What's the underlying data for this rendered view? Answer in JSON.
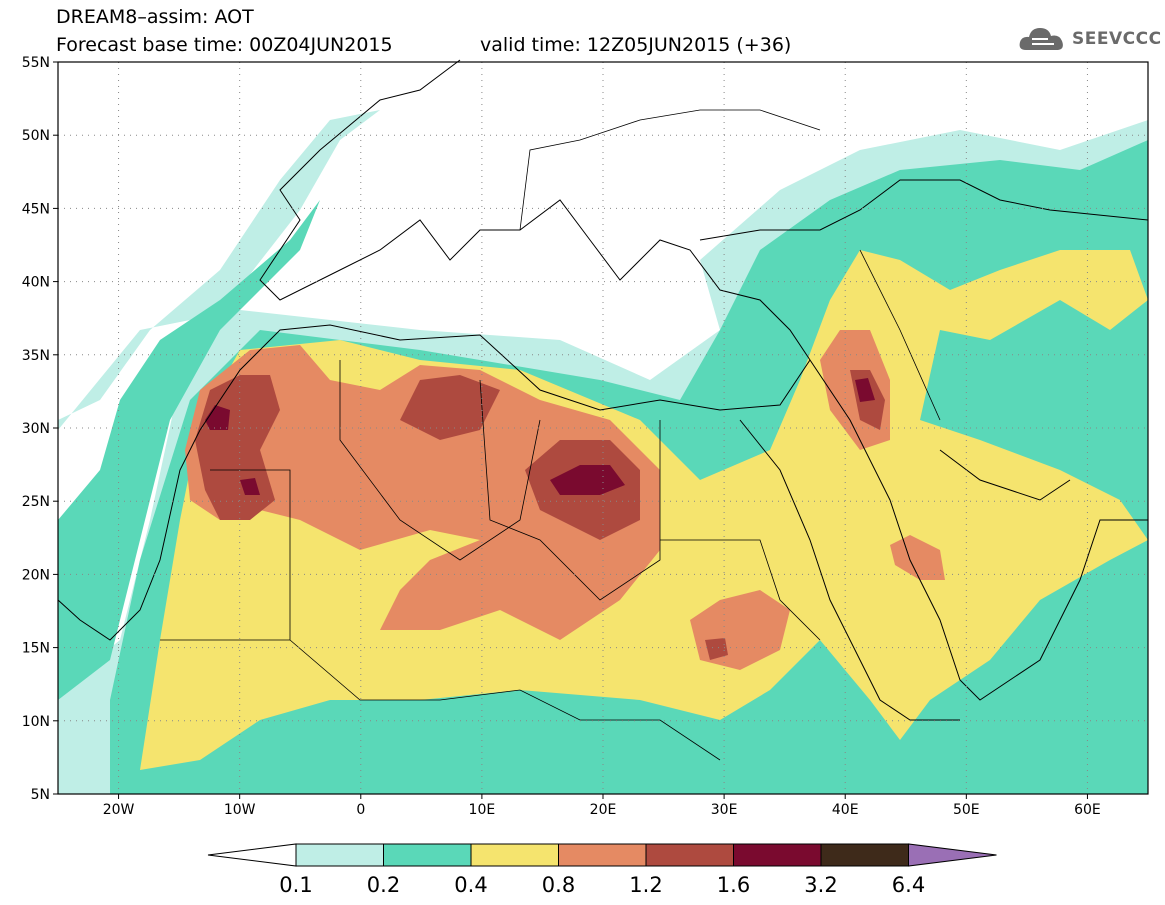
{
  "title": {
    "line1": "DREAM8–assim: AOT",
    "line2": "Forecast base time: 00Z04JUN2015",
    "valid": "valid time: 12Z05JUN2015 (+36)"
  },
  "brand": {
    "name": "SEEVCCC",
    "icon": "cloud-logo-icon"
  },
  "map": {
    "lon_range": [
      -25,
      65
    ],
    "lat_range": [
      5,
      55
    ],
    "lat_labels": [
      "55N",
      "50N",
      "45N",
      "40N",
      "35N",
      "30N",
      "25N",
      "20N",
      "15N",
      "10N",
      "5N"
    ],
    "lon_labels": [
      "20W",
      "10W",
      "0",
      "10E",
      "20E",
      "30E",
      "40E",
      "50E",
      "60E"
    ],
    "grid": "dotted"
  },
  "colorbar": {
    "labels": [
      "0.1",
      "0.2",
      "0.4",
      "0.8",
      "1.2",
      "1.6",
      "3.2",
      "6.4"
    ],
    "colors": [
      "#ffffff",
      "#bfeee6",
      "#5ad8b8",
      "#f5e46e",
      "#e58a63",
      "#ae4a3f",
      "#7a0a2f",
      "#3e2a1a",
      "#9a6fb5"
    ]
  }
}
